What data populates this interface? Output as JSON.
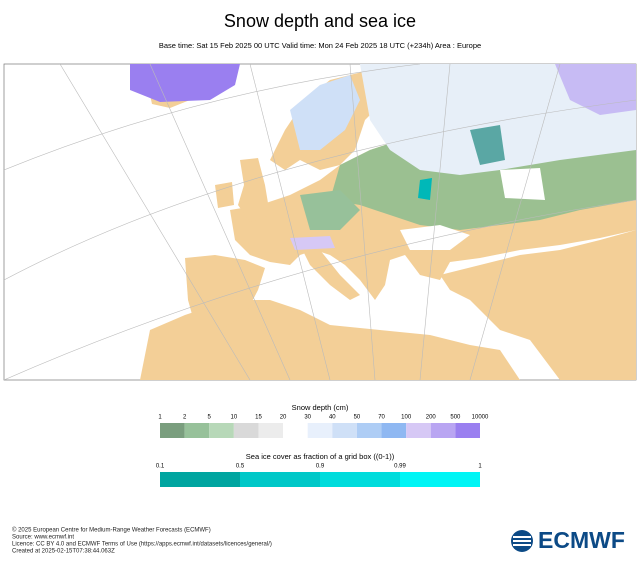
{
  "header": {
    "title": "Snow depth and sea ice",
    "subtitle": "Base time: Sat 15 Feb 2025 00 UTC Valid time: Mon 24 Feb 2025 18 UTC (+234h) Area : Europe"
  },
  "legends": [
    {
      "title": "Snow depth (cm)",
      "labels": [
        "1",
        "2",
        "5",
        "10",
        "15",
        "20",
        "30",
        "40",
        "50",
        "70",
        "100",
        "200",
        "500",
        "10000"
      ]
    },
    {
      "title": "Sea ice cover as fraction of a grid box ((0-1))",
      "labels": [
        "0.1",
        "0.5",
        "0.9",
        "0.99",
        "1"
      ]
    }
  ],
  "footer": {
    "lines": [
      "© 2025 European Centre for Medium-Range Weather Forecasts (ECMWF)",
      "Source: www.ecmwf.int",
      "Licence: CC BY 4.0 and ECMWF Terms of Use (https://apps.ecmwf.int/datasets/licences/general/)",
      "Created at 2025-02-15T07:38:44.063Z"
    ],
    "logo": "ECMWF"
  }
}
